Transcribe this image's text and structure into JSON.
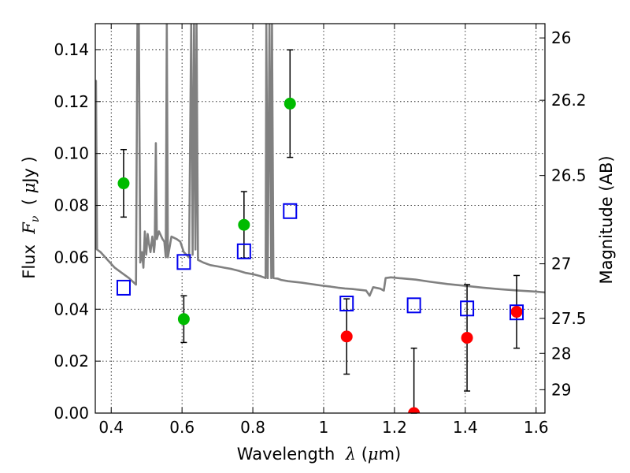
{
  "chart_data": {
    "type": "scatter",
    "xlabel": "Wavelength  λ (μm)",
    "ylabel": "Flux  Fν  ( μJy )",
    "ylabel_right": "Magnitude (AB)",
    "xlim": [
      0.355,
      1.625
    ],
    "ylim": [
      0.0,
      0.15
    ],
    "grid": true,
    "x_ticks": [
      0.4,
      0.6,
      0.8,
      1.0,
      1.2,
      1.4,
      1.6
    ],
    "x_tick_labels": [
      "0.4",
      "0.6",
      "0.8",
      "1",
      "1.2",
      "1.4",
      "1.6"
    ],
    "y_ticks": [
      0.0,
      0.02,
      0.04,
      0.06,
      0.08,
      0.1,
      0.12,
      0.14
    ],
    "y_tick_labels": [
      "0.00",
      "0.02",
      "0.04",
      "0.06",
      "0.08",
      "0.10",
      "0.12",
      "0.14"
    ],
    "right_ticks": [
      {
        "flux": 0.1445,
        "label": "26"
      },
      {
        "flux": 0.1205,
        "label": "26.2"
      },
      {
        "flux": 0.0915,
        "label": "26.5"
      },
      {
        "flux": 0.0575,
        "label": "27"
      },
      {
        "flux": 0.0365,
        "label": "27.5"
      },
      {
        "flux": 0.023,
        "label": "28"
      },
      {
        "flux": 0.009,
        "label": "29"
      }
    ],
    "model_spectrum": {
      "color": "#808080",
      "points": [
        [
          0.355,
          0.063
        ],
        [
          0.357,
          0.128
        ],
        [
          0.36,
          0.063
        ],
        [
          0.37,
          0.062
        ],
        [
          0.39,
          0.059
        ],
        [
          0.41,
          0.056
        ],
        [
          0.43,
          0.054
        ],
        [
          0.45,
          0.052
        ],
        [
          0.47,
          0.0495
        ],
        [
          0.474,
          0.15
        ],
        [
          0.478,
          0.15
        ],
        [
          0.482,
          0.058
        ],
        [
          0.487,
          0.062
        ],
        [
          0.491,
          0.056
        ],
        [
          0.495,
          0.07
        ],
        [
          0.499,
          0.061
        ],
        [
          0.503,
          0.069
        ],
        [
          0.507,
          0.065
        ],
        [
          0.511,
          0.062
        ],
        [
          0.516,
          0.068
        ],
        [
          0.521,
          0.062
        ],
        [
          0.523,
          0.065
        ],
        [
          0.526,
          0.104
        ],
        [
          0.529,
          0.067
        ],
        [
          0.535,
          0.07
        ],
        [
          0.545,
          0.067
        ],
        [
          0.55,
          0.066
        ],
        [
          0.554,
          0.06
        ],
        [
          0.557,
          0.15
        ],
        [
          0.56,
          0.06
        ],
        [
          0.57,
          0.068
        ],
        [
          0.585,
          0.067
        ],
        [
          0.595,
          0.066
        ],
        [
          0.605,
          0.062
        ],
        [
          0.62,
          0.06
        ],
        [
          0.626,
          0.15
        ],
        [
          0.63,
          0.061
        ],
        [
          0.634,
          0.15
        ],
        [
          0.638,
          0.063
        ],
        [
          0.641,
          0.15
        ],
        [
          0.645,
          0.059
        ],
        [
          0.66,
          0.058
        ],
        [
          0.68,
          0.057
        ],
        [
          0.7,
          0.0565
        ],
        [
          0.72,
          0.056
        ],
        [
          0.74,
          0.0555
        ],
        [
          0.76,
          0.0548
        ],
        [
          0.78,
          0.054
        ],
        [
          0.8,
          0.0535
        ],
        [
          0.82,
          0.0528
        ],
        [
          0.836,
          0.052
        ],
        [
          0.838,
          0.15
        ],
        [
          0.842,
          0.052
        ],
        [
          0.847,
          0.15
        ],
        [
          0.852,
          0.052
        ],
        [
          0.854,
          0.15
        ],
        [
          0.858,
          0.052
        ],
        [
          0.87,
          0.0518
        ],
        [
          0.88,
          0.0513
        ],
        [
          0.9,
          0.0508
        ],
        [
          0.92,
          0.0505
        ],
        [
          0.94,
          0.0502
        ],
        [
          0.96,
          0.0498
        ],
        [
          0.98,
          0.0494
        ],
        [
          1.0,
          0.049
        ],
        [
          1.02,
          0.0487
        ],
        [
          1.04,
          0.0483
        ],
        [
          1.06,
          0.048
        ],
        [
          1.08,
          0.0478
        ],
        [
          1.1,
          0.0475
        ],
        [
          1.12,
          0.0472
        ],
        [
          1.13,
          0.0452
        ],
        [
          1.14,
          0.0485
        ],
        [
          1.16,
          0.0479
        ],
        [
          1.17,
          0.0472
        ],
        [
          1.175,
          0.052
        ],
        [
          1.19,
          0.0523
        ],
        [
          1.22,
          0.0519
        ],
        [
          1.26,
          0.0514
        ],
        [
          1.3,
          0.0506
        ],
        [
          1.35,
          0.0497
        ],
        [
          1.4,
          0.049
        ],
        [
          1.45,
          0.0483
        ],
        [
          1.5,
          0.0477
        ],
        [
          1.55,
          0.0472
        ],
        [
          1.6,
          0.0468
        ],
        [
          1.625,
          0.0465
        ]
      ]
    },
    "series": [
      {
        "marker": "circle",
        "color": "#00bb00",
        "points": [
          {
            "x": 0.435,
            "y": 0.0885,
            "err": 0.013
          },
          {
            "x": 0.605,
            "y": 0.0362,
            "err": 0.009
          },
          {
            "x": 0.775,
            "y": 0.0725,
            "err": 0.0128
          },
          {
            "x": 0.905,
            "y": 0.1192,
            "err": 0.0207
          }
        ]
      },
      {
        "marker": "circle",
        "color": "#ff0000",
        "points": [
          {
            "x": 1.065,
            "y": 0.0295,
            "err": 0.0145
          },
          {
            "x": 1.255,
            "y": 0.0,
            "err": 0.025
          },
          {
            "x": 1.405,
            "y": 0.029,
            "err": 0.0205
          },
          {
            "x": 1.545,
            "y": 0.039,
            "err": 0.014
          }
        ]
      },
      {
        "marker": "square-open",
        "color": "#0000ee",
        "points": [
          {
            "x": 0.435,
            "y": 0.0483
          },
          {
            "x": 0.605,
            "y": 0.0582
          },
          {
            "x": 0.775,
            "y": 0.0623
          },
          {
            "x": 0.905,
            "y": 0.0778
          },
          {
            "x": 1.065,
            "y": 0.0422
          },
          {
            "x": 1.255,
            "y": 0.0415
          },
          {
            "x": 1.405,
            "y": 0.0403
          },
          {
            "x": 1.545,
            "y": 0.0388
          }
        ]
      }
    ]
  }
}
